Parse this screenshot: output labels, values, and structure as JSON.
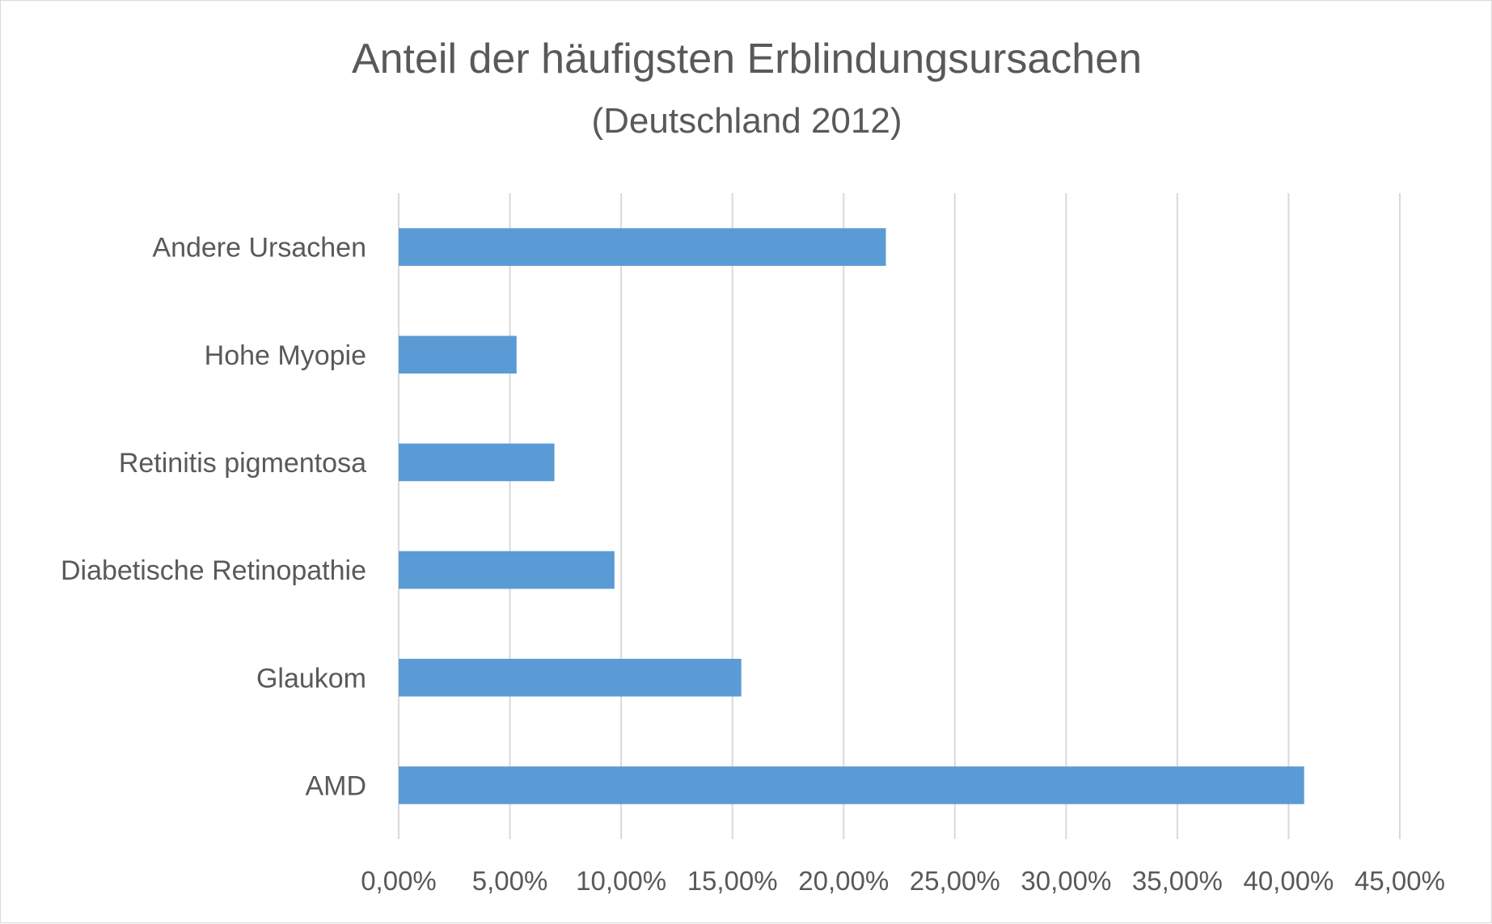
{
  "chart_data": {
    "type": "bar",
    "orientation": "horizontal",
    "title": "Anteil der häufigsten Erblindungsursachen",
    "subtitle": "(Deutschland 2012)",
    "categories": [
      "AMD",
      "Glaukom",
      "Diabetische Retinopathie",
      "Retinitis pigmentosa",
      "Hohe Myopie",
      "Andere Ursachen"
    ],
    "values": [
      0.407,
      0.154,
      0.097,
      0.07,
      0.053,
      0.219
    ],
    "xlim": [
      0,
      0.45
    ],
    "x_ticks": [
      "0,00%",
      "5,00%",
      "10,00%",
      "15,00%",
      "20,00%",
      "25,00%",
      "30,00%",
      "35,00%",
      "40,00%",
      "45,00%"
    ],
    "grid": "vertical",
    "legend": "none",
    "bar_color": "#5b9bd5",
    "grid_color": "#d9d9d9",
    "text_color": "#595959"
  }
}
